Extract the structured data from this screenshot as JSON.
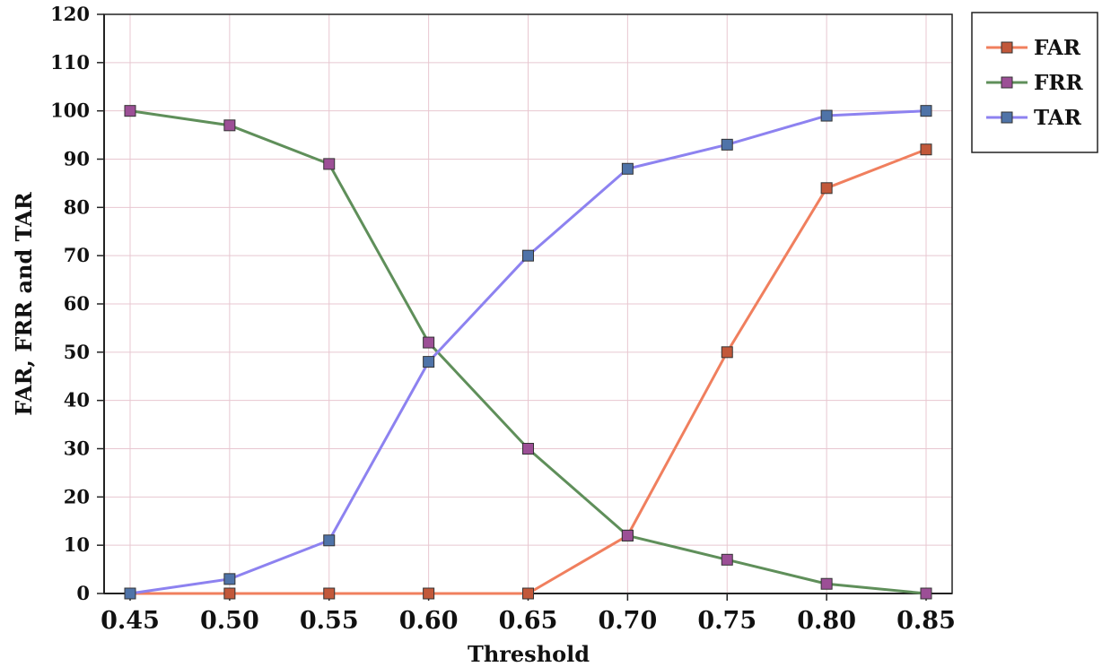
{
  "chart_data": {
    "type": "line",
    "title": "",
    "xlabel": "Threshold",
    "ylabel": "FAR, FRR and TAR",
    "x": [
      "0.45",
      "0.50",
      "0.55",
      "0.60",
      "0.65",
      "0.70",
      "0.75",
      "0.80",
      "0.85"
    ],
    "y_ticks": [
      "0",
      "10",
      "20",
      "30",
      "40",
      "50",
      "60",
      "70",
      "80",
      "90",
      "100",
      "110",
      "120"
    ],
    "ylim": [
      0,
      120
    ],
    "grid": true,
    "legend_position": "top-right outside",
    "series": [
      {
        "name": "FAR",
        "color": "#f07f5e",
        "marker_color": "#c2583a",
        "values": [
          0,
          0,
          0,
          0,
          0,
          12,
          50,
          84,
          92
        ]
      },
      {
        "name": "FRR",
        "color": "#5f8f5a",
        "marker_color": "#9c4f96",
        "values": [
          100,
          97,
          89,
          52,
          30,
          12,
          7,
          2,
          0
        ]
      },
      {
        "name": "TAR",
        "color": "#8d82f0",
        "marker_color": "#4f73a8",
        "values": [
          0,
          3,
          11,
          48,
          70,
          88,
          93,
          99,
          100
        ]
      }
    ],
    "grid_color": "#e8c7d0"
  }
}
